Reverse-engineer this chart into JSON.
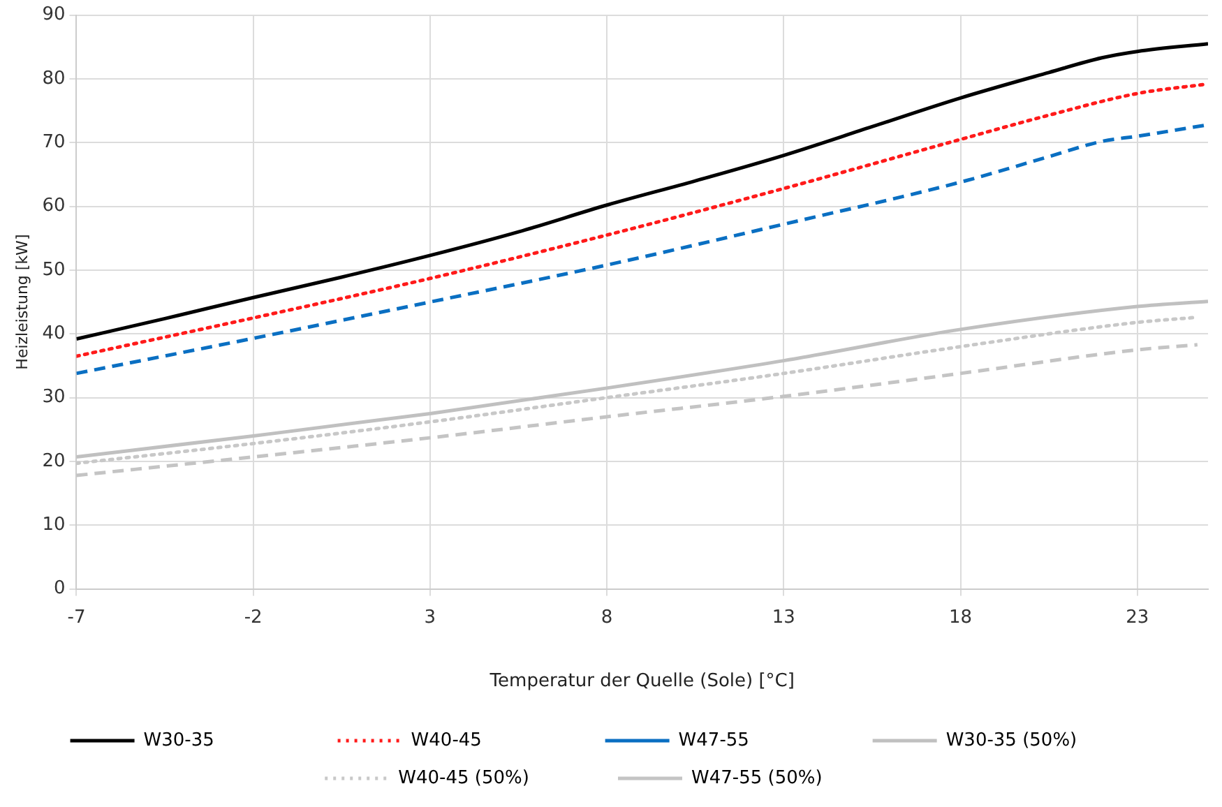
{
  "chart_data": {
    "type": "line",
    "xlabel": "Temperatur der Quelle (Sole) [°C]",
    "ylabel": "Heizleistung [kW]",
    "xlim": [
      -7,
      25
    ],
    "xticks": [
      -7,
      -2,
      3,
      8,
      13,
      18,
      23
    ],
    "ylim": [
      0,
      90
    ],
    "yticks": [
      0,
      10,
      20,
      30,
      40,
      50,
      60,
      70,
      80,
      90
    ],
    "grid": true,
    "legend": "bottom",
    "marker": "none",
    "series": [
      {
        "name": "W30-35",
        "color": "#000000",
        "line_style": "solid",
        "x": [
          -7,
          -4.5,
          -2,
          0.5,
          3,
          5.5,
          8,
          10.5,
          13,
          15.5,
          18,
          20.5,
          22,
          23,
          25
        ],
        "values": [
          39.2,
          42.4,
          45.7,
          48.9,
          52.3,
          56,
          60.2,
          64,
          68,
          72.5,
          77,
          81,
          83.3,
          84.3,
          85.5
        ]
      },
      {
        "name": "W40-45",
        "color": "#ff1a1a",
        "line_style": "dotted",
        "x": [
          -7,
          -2,
          3,
          8,
          13,
          18,
          20.5,
          23,
          25
        ],
        "values": [
          36.5,
          42.5,
          48.7,
          55.5,
          62.8,
          70.5,
          74.3,
          77.7,
          79.2
        ]
      },
      {
        "name": "W47-55",
        "color": "#0a6fc2",
        "line_style": "dashed",
        "x": [
          -7,
          -2,
          3,
          8,
          13,
          18,
          20.5,
          22,
          23,
          25
        ],
        "values": [
          33.8,
          39.3,
          45,
          50.8,
          57.2,
          63.8,
          67.8,
          70.2,
          71,
          72.8
        ]
      },
      {
        "name": "W30-35 (50%)",
        "color": "#c0c0c0",
        "line_style": "solid",
        "x": [
          -7,
          -2,
          3,
          8,
          13,
          18,
          23,
          25
        ],
        "values": [
          20.7,
          24,
          27.5,
          31.5,
          35.8,
          40.7,
          44.3,
          45.1
        ]
      },
      {
        "name": "W40-45 (50%)",
        "color": "#c8c8c8",
        "line_style": "dotted",
        "x": [
          -7,
          -2,
          3,
          8,
          13,
          18,
          23,
          24.7
        ],
        "values": [
          19.7,
          22.8,
          26.2,
          30,
          33.8,
          38,
          41.8,
          42.6
        ]
      },
      {
        "name": "W47-55 (50%)",
        "color": "#c4c4c4",
        "line_style": "dashed",
        "x": [
          -7,
          -2,
          3,
          8,
          13,
          18,
          23,
          24.7
        ],
        "values": [
          17.8,
          20.7,
          23.7,
          27,
          30.2,
          33.8,
          37.5,
          38.3
        ]
      }
    ]
  }
}
